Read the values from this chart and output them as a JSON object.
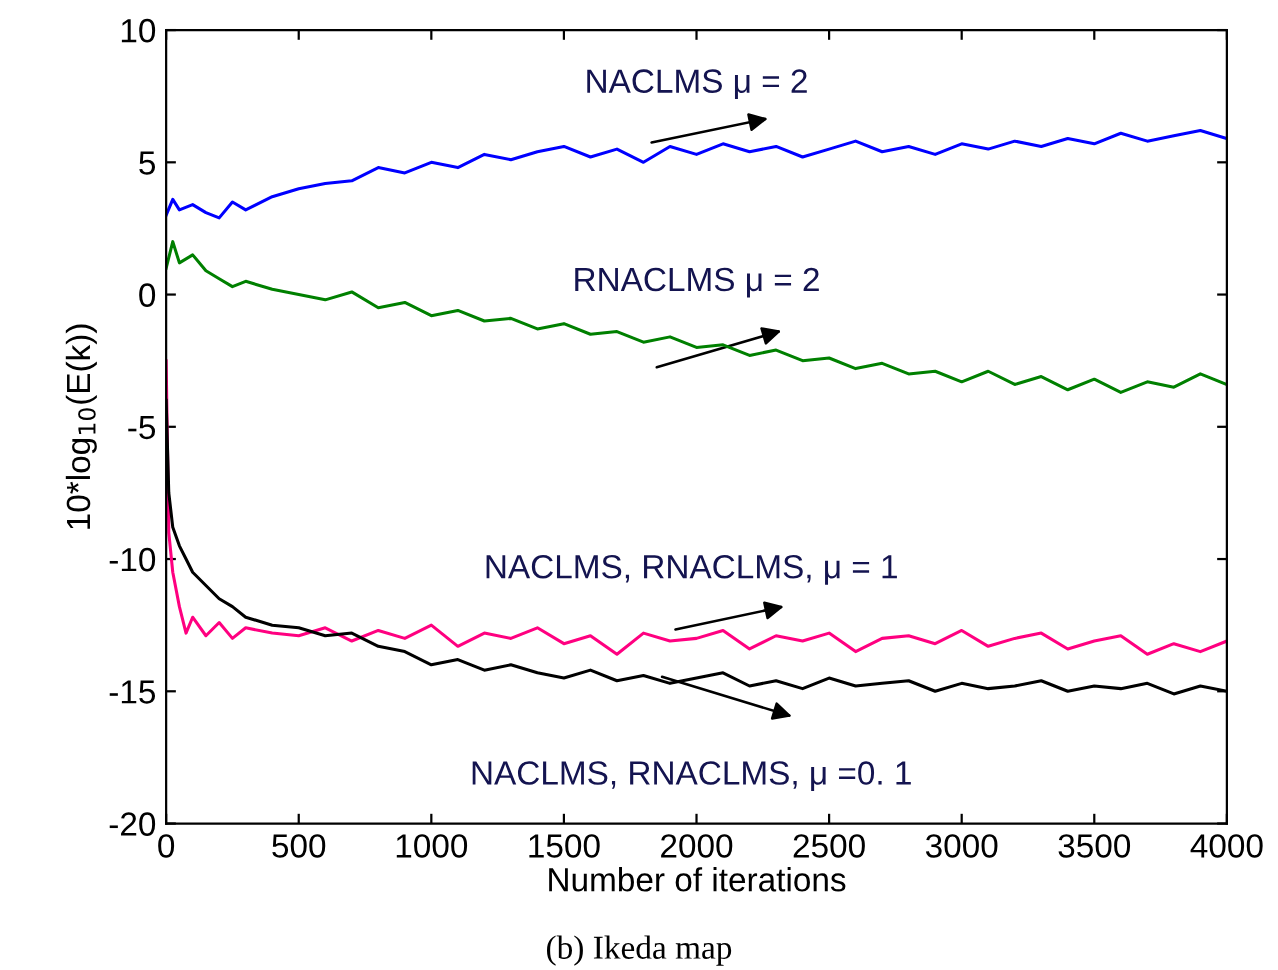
{
  "chart_data": {
    "type": "line",
    "xlabel": "Number of iterations",
    "ylabel": "10*log$_{10}$(E(k))",
    "xlim": [
      0,
      4000
    ],
    "xticks": [
      0,
      500,
      1000,
      1500,
      2000,
      2500,
      3000,
      3500,
      4000
    ],
    "ylim": [
      -20,
      10
    ],
    "yticks": [
      -20,
      -15,
      -10,
      -5,
      0,
      5,
      10
    ],
    "grid": false,
    "legend": false,
    "marker": "none",
    "line_style": "solid",
    "series": [
      {
        "color": "#0000ff",
        "x": [
          0,
          25,
          50,
          100,
          150,
          200,
          250,
          300,
          400,
          500,
          600,
          700,
          800,
          900,
          1000,
          1100,
          1200,
          1300,
          1400,
          1500,
          1600,
          1700,
          1800,
          1900,
          2000,
          2100,
          2200,
          2300,
          2400,
          2500,
          2600,
          2700,
          2800,
          2900,
          3000,
          3100,
          3200,
          3300,
          3400,
          3500,
          3600,
          3700,
          3800,
          3900,
          4000
        ],
        "values": [
          3.0,
          3.6,
          3.2,
          3.4,
          3.1,
          2.9,
          3.5,
          3.2,
          3.7,
          4.0,
          4.2,
          4.3,
          4.8,
          4.6,
          5.0,
          4.8,
          5.3,
          5.1,
          5.4,
          5.6,
          5.2,
          5.5,
          5.0,
          5.6,
          5.3,
          5.7,
          5.4,
          5.6,
          5.2,
          5.5,
          5.8,
          5.4,
          5.6,
          5.3,
          5.7,
          5.5,
          5.8,
          5.6,
          5.9,
          5.7,
          6.1,
          5.8,
          6.0,
          6.2,
          5.9
        ]
      },
      {
        "color": "#008000",
        "x": [
          0,
          25,
          50,
          100,
          150,
          200,
          250,
          300,
          400,
          500,
          600,
          700,
          800,
          900,
          1000,
          1100,
          1200,
          1300,
          1400,
          1500,
          1600,
          1700,
          1800,
          1900,
          2000,
          2100,
          2200,
          2300,
          2400,
          2500,
          2600,
          2700,
          2800,
          2900,
          3000,
          3100,
          3200,
          3300,
          3400,
          3500,
          3600,
          3700,
          3800,
          3900,
          4000
        ],
        "values": [
          1.0,
          2.0,
          1.2,
          1.5,
          0.9,
          0.6,
          0.3,
          0.5,
          0.2,
          0.0,
          -0.2,
          0.1,
          -0.5,
          -0.3,
          -0.8,
          -0.6,
          -1.0,
          -0.9,
          -1.3,
          -1.1,
          -1.5,
          -1.4,
          -1.8,
          -1.6,
          -2.0,
          -1.9,
          -2.3,
          -2.1,
          -2.5,
          -2.4,
          -2.8,
          -2.6,
          -3.0,
          -2.9,
          -3.3,
          -2.9,
          -3.4,
          -3.1,
          -3.6,
          -3.2,
          -3.7,
          -3.3,
          -3.5,
          -3.0,
          -3.4
        ]
      },
      {
        "color": "#ff0080",
        "x": [
          0,
          10,
          25,
          50,
          75,
          100,
          150,
          200,
          250,
          300,
          400,
          500,
          600,
          700,
          800,
          900,
          1000,
          1100,
          1200,
          1300,
          1400,
          1500,
          1600,
          1700,
          1800,
          1900,
          2000,
          2100,
          2200,
          2300,
          2400,
          2500,
          2600,
          2700,
          2800,
          2900,
          3000,
          3100,
          3200,
          3300,
          3400,
          3500,
          3600,
          3700,
          3800,
          3900,
          4000
        ],
        "values": [
          -2.5,
          -9.0,
          -10.5,
          -11.8,
          -12.8,
          -12.2,
          -12.9,
          -12.4,
          -13.0,
          -12.6,
          -12.8,
          -12.9,
          -12.6,
          -13.1,
          -12.7,
          -13.0,
          -12.5,
          -13.3,
          -12.8,
          -13.0,
          -12.6,
          -13.2,
          -12.9,
          -13.6,
          -12.8,
          -13.1,
          -13.0,
          -12.7,
          -13.4,
          -12.9,
          -13.1,
          -12.8,
          -13.5,
          -13.0,
          -12.9,
          -13.2,
          -12.7,
          -13.3,
          -13.0,
          -12.8,
          -13.4,
          -13.1,
          -12.9,
          -13.6,
          -13.2,
          -13.5,
          -13.1
        ]
      },
      {
        "color": "#000000",
        "x": [
          0,
          10,
          25,
          50,
          75,
          100,
          150,
          200,
          250,
          300,
          400,
          500,
          600,
          700,
          800,
          900,
          1000,
          1100,
          1200,
          1300,
          1400,
          1500,
          1600,
          1700,
          1800,
          1900,
          2000,
          2100,
          2200,
          2300,
          2400,
          2500,
          2600,
          2700,
          2800,
          2900,
          3000,
          3100,
          3200,
          3300,
          3400,
          3500,
          3600,
          3700,
          3800,
          3900,
          4000
        ],
        "values": [
          -4.0,
          -7.5,
          -8.8,
          -9.5,
          -10.0,
          -10.5,
          -11.0,
          -11.5,
          -11.8,
          -12.2,
          -12.5,
          -12.6,
          -12.9,
          -12.8,
          -13.3,
          -13.5,
          -14.0,
          -13.8,
          -14.2,
          -14.0,
          -14.3,
          -14.5,
          -14.2,
          -14.6,
          -14.4,
          -14.7,
          -14.5,
          -14.3,
          -14.8,
          -14.6,
          -14.9,
          -14.5,
          -14.8,
          -14.7,
          -14.6,
          -15.0,
          -14.7,
          -14.9,
          -14.8,
          -14.6,
          -15.0,
          -14.8,
          -14.9,
          -14.7,
          -15.1,
          -14.8,
          -15.0
        ]
      }
    ],
    "annotations": [
      "NACLMS μ = 2",
      "RNACLMS μ = 2",
      "NACLMS, RNACLMS, μ = 1",
      "NACLMS, RNACLMS, μ =0. 1",
      "(b) Ikeda map"
    ]
  }
}
